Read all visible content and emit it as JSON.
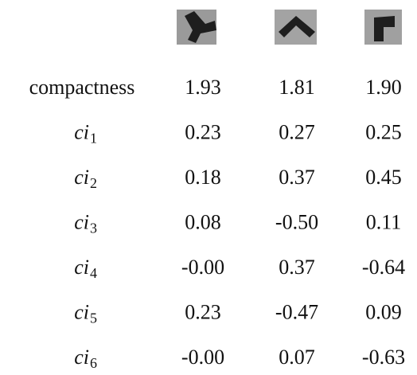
{
  "table": {
    "rows": [
      {
        "label": "compactness",
        "cells": [
          "1.93",
          "1.81",
          "1.90"
        ]
      },
      {
        "label": "ci",
        "subscript": "1",
        "cells": [
          "0.23",
          "0.27",
          "0.25"
        ]
      },
      {
        "label": "ci",
        "subscript": "2",
        "cells": [
          "0.18",
          "0.37",
          "0.45"
        ]
      },
      {
        "label": "ci",
        "subscript": "3",
        "cells": [
          "0.08",
          "-0.50",
          "0.11"
        ]
      },
      {
        "label": "ci",
        "subscript": "4",
        "cells": [
          "-0.00",
          "0.37",
          "-0.64"
        ]
      },
      {
        "label": "ci",
        "subscript": "5",
        "cells": [
          "0.23",
          "-0.47",
          "0.09"
        ]
      },
      {
        "label": "ci",
        "subscript": "6",
        "cells": [
          "-0.00",
          "0.07",
          "-0.63"
        ]
      }
    ]
  }
}
